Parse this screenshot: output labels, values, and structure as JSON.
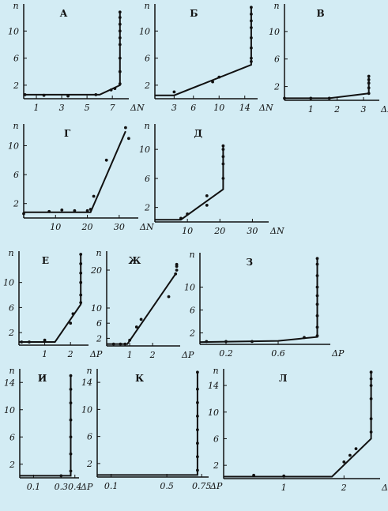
{
  "colors": {
    "background": "#d3ecf4",
    "ink": "#111111"
  },
  "chart_data": [
    {
      "id": "A",
      "type": "line",
      "title": "А",
      "xlabel": "ΔN",
      "ylabel": "n",
      "xlim": [
        0,
        8.3
      ],
      "ylim": [
        0,
        14
      ],
      "xticks": [
        1,
        3,
        5,
        7
      ],
      "yticks": [
        2,
        6,
        10
      ],
      "line": [
        [
          0,
          0.6
        ],
        [
          6,
          0.6
        ],
        [
          7.6,
          2
        ],
        [
          7.6,
          13
        ]
      ],
      "points": [
        [
          0.1,
          0.6
        ],
        [
          1.6,
          0.5
        ],
        [
          3.5,
          0.4
        ],
        [
          5.7,
          0.6
        ],
        [
          6.9,
          1.3
        ],
        [
          7.2,
          1.5
        ],
        [
          7.6,
          2.2
        ],
        [
          7.6,
          4
        ],
        [
          7.6,
          6
        ],
        [
          7.6,
          8
        ],
        [
          7.6,
          9
        ],
        [
          7.6,
          10
        ],
        [
          7.6,
          11
        ],
        [
          7.6,
          12
        ],
        [
          7.6,
          12.8
        ]
      ]
    },
    {
      "id": "B",
      "type": "line",
      "title": "Б",
      "xlabel": "ΔN",
      "ylabel": "n",
      "xlim": [
        0,
        16
      ],
      "ylim": [
        0,
        14
      ],
      "xticks": [
        3,
        6,
        10,
        14
      ],
      "yticks": [
        2,
        6,
        10
      ],
      "line": [
        [
          0,
          0.5
        ],
        [
          3,
          0.5
        ],
        [
          15,
          5
        ],
        [
          15,
          13.5
        ]
      ],
      "points": [
        [
          3,
          1
        ],
        [
          9,
          2.5
        ],
        [
          10,
          3.2
        ],
        [
          15,
          5.5
        ],
        [
          15,
          6
        ],
        [
          15,
          7.5
        ],
        [
          15,
          9
        ],
        [
          15,
          10.5
        ],
        [
          15,
          11.5
        ],
        [
          15,
          12.5
        ],
        [
          15,
          13.5
        ]
      ]
    },
    {
      "id": "V",
      "type": "line",
      "title": "В",
      "xlabel": "ΔN",
      "ylabel": "n",
      "xlim": [
        0,
        3.6
      ],
      "ylim": [
        0,
        14
      ],
      "xticks": [
        1,
        2,
        3
      ],
      "yticks": [
        2,
        6,
        10
      ],
      "line": [
        [
          0,
          0.3
        ],
        [
          1.7,
          0.3
        ],
        [
          3.2,
          1
        ],
        [
          3.2,
          3.5
        ]
      ],
      "points": [
        [
          0,
          0.3
        ],
        [
          1,
          0.3
        ],
        [
          1.7,
          0.3
        ],
        [
          3.2,
          1
        ],
        [
          3.2,
          1.8
        ],
        [
          3.2,
          2.5
        ],
        [
          3.2,
          3
        ],
        [
          3.2,
          3.5
        ]
      ]
    },
    {
      "id": "G",
      "type": "line",
      "title": "Г",
      "xlabel": "ΔN",
      "ylabel": "n",
      "xlim": [
        0,
        36
      ],
      "ylim": [
        0,
        13
      ],
      "xticks": [
        10,
        20,
        30
      ],
      "yticks": [
        2,
        6,
        10
      ],
      "line": [
        [
          0,
          0.8
        ],
        [
          21,
          0.8
        ],
        [
          32,
          12
        ]
      ],
      "points": [
        [
          0,
          0.6
        ],
        [
          8,
          0.9
        ],
        [
          12,
          1.1
        ],
        [
          16,
          1
        ],
        [
          20,
          1
        ],
        [
          21,
          1.2
        ],
        [
          22,
          3
        ],
        [
          26,
          8
        ],
        [
          32,
          12.5
        ],
        [
          33,
          11
        ]
      ]
    },
    {
      "id": "D",
      "type": "line",
      "title": "Д",
      "xlabel": "ΔN",
      "ylabel": "n",
      "xlim": [
        0,
        35
      ],
      "ylim": [
        0,
        13.5
      ],
      "xticks": [
        10,
        20,
        30
      ],
      "yticks": [
        2,
        6,
        10
      ],
      "line": [
        [
          0,
          0.3
        ],
        [
          8,
          0.3
        ],
        [
          21,
          4.5
        ],
        [
          21,
          10.5
        ]
      ],
      "points": [
        [
          8,
          0.5
        ],
        [
          10,
          1.1
        ],
        [
          16,
          2.3
        ],
        [
          16,
          3.6
        ],
        [
          21,
          6
        ],
        [
          21,
          8
        ],
        [
          21,
          9
        ],
        [
          21,
          10
        ],
        [
          21,
          10.5
        ]
      ]
    },
    {
      "id": "E",
      "type": "line",
      "title": "Е",
      "xlabel": "ΔP",
      "ylabel": "n",
      "xlim": [
        0,
        2.7
      ],
      "ylim": [
        0,
        15
      ],
      "xticks": [
        1,
        2
      ],
      "yticks": [
        2,
        6,
        10
      ],
      "line": [
        [
          0,
          0.5
        ],
        [
          1.4,
          0.5
        ],
        [
          2.4,
          6.5
        ],
        [
          2.4,
          14.5
        ]
      ],
      "points": [
        [
          0.1,
          0.5
        ],
        [
          0.4,
          0.5
        ],
        [
          1,
          0.8
        ],
        [
          2,
          3.5
        ],
        [
          2.1,
          5
        ],
        [
          2.4,
          6.8
        ],
        [
          2.4,
          8
        ],
        [
          2.4,
          10
        ],
        [
          2.4,
          11.5
        ],
        [
          2.4,
          13
        ],
        [
          2.4,
          14.5
        ]
      ]
    },
    {
      "id": "Zh",
      "type": "line",
      "title": "Ж",
      "xlabel": "ΔP",
      "ylabel": "n",
      "xlim": [
        0,
        3.2
      ],
      "ylim": [
        0,
        25
      ],
      "xticks": [
        1,
        2
      ],
      "yticks": [
        2,
        6,
        10,
        20
      ],
      "line": [
        [
          0,
          0.5
        ],
        [
          0.9,
          0.5
        ],
        [
          3,
          19
        ]
      ],
      "points": [
        [
          0.3,
          0.5
        ],
        [
          0.6,
          0.5
        ],
        [
          0.8,
          0.5
        ],
        [
          1,
          1.5
        ],
        [
          1.3,
          5
        ],
        [
          1.5,
          7
        ],
        [
          2.7,
          13
        ],
        [
          3,
          19
        ],
        [
          3.05,
          20
        ],
        [
          3.05,
          21
        ],
        [
          3.05,
          21.5
        ]
      ]
    },
    {
      "id": "Z",
      "type": "line",
      "title": "З",
      "xlabel": "ΔP",
      "ylabel": "n",
      "xlim": [
        0,
        1
      ],
      "ylim": [
        0,
        16
      ],
      "xticks": [
        0.2,
        0.6
      ],
      "yticks": [
        2,
        6,
        10
      ],
      "line": [
        [
          0,
          0.4
        ],
        [
          0.6,
          0.6
        ],
        [
          0.9,
          1.3
        ],
        [
          0.9,
          15
        ]
      ],
      "points": [
        [
          0.05,
          0.5
        ],
        [
          0.2,
          0.5
        ],
        [
          0.4,
          0.5
        ],
        [
          0.8,
          1.2
        ],
        [
          0.9,
          1.5
        ],
        [
          0.9,
          3
        ],
        [
          0.9,
          5
        ],
        [
          0.9,
          7
        ],
        [
          0.9,
          8.5
        ],
        [
          0.9,
          10
        ],
        [
          0.9,
          12
        ],
        [
          0.9,
          14
        ],
        [
          0.9,
          15
        ]
      ]
    },
    {
      "id": "I",
      "type": "line",
      "title": "И",
      "xlabel": "ΔP",
      "ylabel": "n",
      "xlim": [
        0,
        0.43
      ],
      "ylim": [
        0,
        16
      ],
      "xticks": [
        0.1,
        0.3,
        0.4
      ],
      "yticks": [
        2,
        6,
        10,
        14
      ],
      "line": [
        [
          0,
          0.3
        ],
        [
          0.37,
          0.3
        ],
        [
          0.37,
          15
        ]
      ],
      "points": [
        [
          0.3,
          0.3
        ],
        [
          0.37,
          1
        ],
        [
          0.37,
          3.5
        ],
        [
          0.37,
          6
        ],
        [
          0.37,
          8.5
        ],
        [
          0.37,
          11
        ],
        [
          0.37,
          13
        ],
        [
          0.37,
          15
        ]
      ]
    },
    {
      "id": "K",
      "type": "line",
      "title": "К",
      "xlabel": "ΔP",
      "ylabel": "n",
      "xlim": [
        0,
        0.8
      ],
      "ylim": [
        0,
        16
      ],
      "xticks": [
        0.1,
        0.5,
        0.75
      ],
      "yticks": [
        2,
        6,
        10,
        14
      ],
      "line": [
        [
          0,
          0.3
        ],
        [
          0.72,
          0.3
        ],
        [
          0.72,
          15.5
        ]
      ],
      "points": [
        [
          0.72,
          1
        ],
        [
          0.72,
          3
        ],
        [
          0.72,
          5
        ],
        [
          0.72,
          7
        ],
        [
          0.72,
          9
        ],
        [
          0.72,
          11
        ],
        [
          0.72,
          13
        ],
        [
          0.72,
          15.5
        ]
      ]
    },
    {
      "id": "L",
      "type": "line",
      "title": "Л",
      "xlabel": "ΔP",
      "ylabel": "n",
      "xlim": [
        0,
        2.6
      ],
      "ylim": [
        0,
        16.5
      ],
      "xticks": [
        1,
        2
      ],
      "yticks": [
        2,
        6,
        10,
        14
      ],
      "line": [
        [
          0,
          0.3
        ],
        [
          1.8,
          0.3
        ],
        [
          2.45,
          6
        ],
        [
          2.45,
          16
        ]
      ],
      "points": [
        [
          0.5,
          0.5
        ],
        [
          1,
          0.4
        ],
        [
          2,
          2.5
        ],
        [
          2.1,
          3.5
        ],
        [
          2.2,
          4.5
        ],
        [
          2.45,
          7
        ],
        [
          2.45,
          9
        ],
        [
          2.45,
          12
        ],
        [
          2.45,
          14
        ],
        [
          2.45,
          15
        ],
        [
          2.45,
          16
        ]
      ]
    }
  ]
}
